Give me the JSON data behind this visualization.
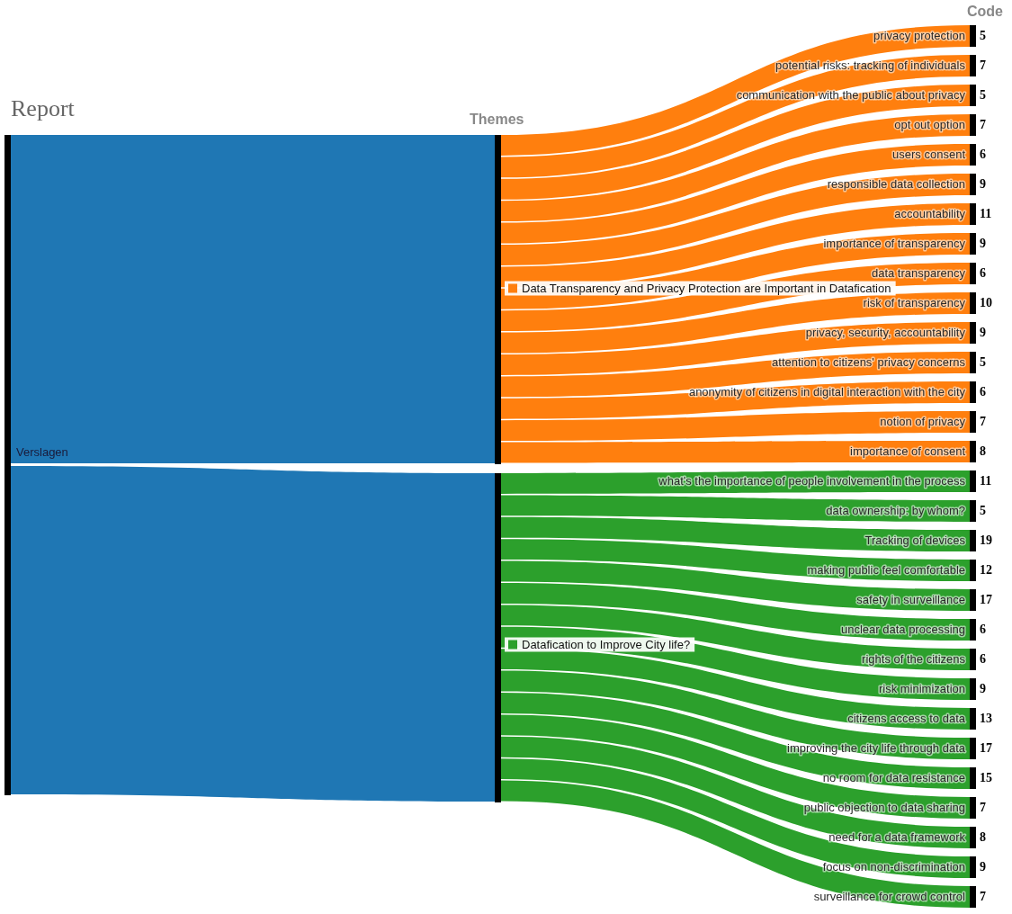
{
  "chart_data": {
    "type": "other",
    "categories": [
      "privacy protection",
      "potential risks: tracking of individuals",
      "communication with the public about privacy",
      "opt out option",
      "users consent",
      "responsible data collection",
      "accountability",
      "importance of transparency",
      "data transparency",
      "risk of transparency",
      "privacy, security, accountability",
      "attention to citizens' privacy concerns",
      "anonymity of citizens in digital interaction with the city",
      "notion of privacy",
      "importance of consent",
      "what's the importance of people involvement in the process",
      "data ownership: by whom?",
      "Tracking of devices",
      "making public feel comfortable",
      "safety in surveillance",
      "unclear data processing",
      "rights of the citizens",
      "risk minimization",
      "citizens access to data",
      "improving the city life through data",
      "no room for data resistance",
      "public objection to data sharing",
      "need for a data framework",
      "focus on non-discrimination",
      "surveillance for crowd control"
    ],
    "series": [
      {
        "name": "Data Transparency and Privacy Protection are Important in Datafication",
        "color": "#ff7f0e",
        "values": [
          5,
          7,
          5,
          7,
          6,
          9,
          11,
          9,
          6,
          10,
          9,
          5,
          6,
          7,
          8,
          null,
          null,
          null,
          null,
          null,
          null,
          null,
          null,
          null,
          null,
          null,
          null,
          null,
          null,
          null
        ]
      },
      {
        "name": "Datafication to Improve City life?",
        "color": "#2ca02c",
        "values": [
          null,
          null,
          null,
          null,
          null,
          null,
          null,
          null,
          null,
          null,
          null,
          null,
          null,
          null,
          null,
          11,
          5,
          19,
          12,
          17,
          6,
          6,
          9,
          13,
          17,
          15,
          7,
          8,
          9,
          7
        ]
      }
    ],
    "color": "#1f77b4",
    "data_labels": true,
    "annotations": [
      "Report",
      "Themes",
      "Code",
      "Verslagen"
    ]
  }
}
